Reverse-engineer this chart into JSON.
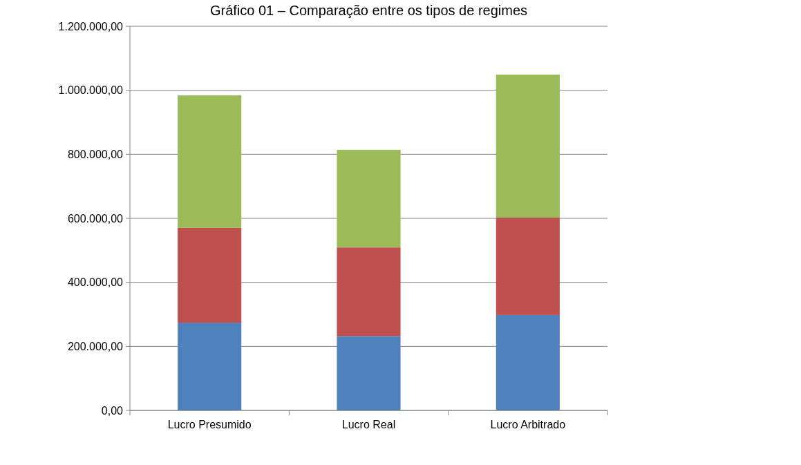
{
  "chart_data": {
    "type": "bar",
    "title": "Gráfico 01 – Comparação entre os tipos de regimes",
    "categories": [
      "Lucro Presumido",
      "Lucro Real",
      "Lucro Arbitrado"
    ],
    "stacked": true,
    "series": [
      {
        "color": "#4f81bd",
        "values": [
          274000,
          232000,
          298000
        ]
      },
      {
        "color": "#c0504d",
        "values": [
          296000,
          277000,
          304000
        ]
      },
      {
        "color": "#9bbb59",
        "values": [
          414000,
          305000,
          447000
        ]
      }
    ],
    "ylim": [
      0,
      1200000
    ],
    "yticks": [
      {
        "value": 0,
        "label": "0,00"
      },
      {
        "value": 200000,
        "label": "200.000,00"
      },
      {
        "value": 400000,
        "label": "400.000,00"
      },
      {
        "value": 600000,
        "label": "600.000,00"
      },
      {
        "value": 800000,
        "label": "800.000,00"
      },
      {
        "value": 1000000,
        "label": "1.000.000,00"
      },
      {
        "value": 1200000,
        "label": "1.200.000,00"
      }
    ],
    "grid": "y"
  }
}
